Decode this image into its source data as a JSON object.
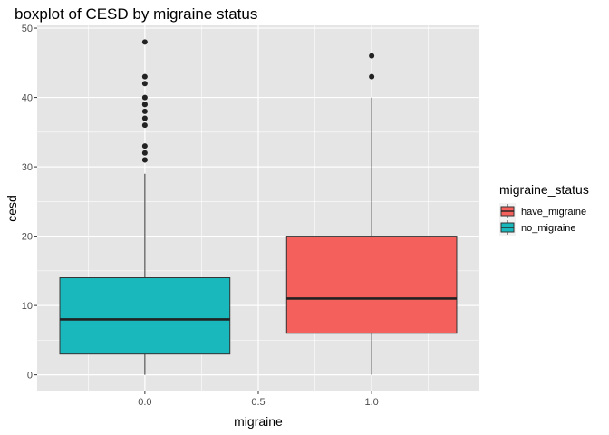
{
  "chart_data": {
    "type": "boxplot",
    "title": "boxplot of CESD by migraine status",
    "xlabel": "migraine",
    "ylabel": "cesd",
    "xlim": [
      -0.475,
      1.475
    ],
    "ylim": [
      -2.4,
      50.4
    ],
    "x_ticks": [
      0.0,
      0.5,
      1.0
    ],
    "x_tick_labels": [
      "0.0",
      "0.5",
      "1.0"
    ],
    "x_minor_ticks": [
      -0.25,
      0.25,
      0.75,
      1.25
    ],
    "y_ticks": [
      0,
      10,
      20,
      30,
      40,
      50
    ],
    "y_tick_labels": [
      "0",
      "10",
      "20",
      "30",
      "40",
      "50"
    ],
    "y_minor_ticks": [
      5,
      15,
      25,
      35,
      45
    ],
    "grid": true,
    "panel_background": "#e5e5e5",
    "grid_color": "#ffffff",
    "box_width": 0.75,
    "boxes": [
      {
        "group": "no_migraine",
        "x": 0.0,
        "whisker_low": 0,
        "q1": 3,
        "median": 8,
        "q3": 14,
        "whisker_high": 29,
        "outliers": [
          31,
          31,
          32,
          33,
          36,
          37,
          38,
          39,
          39,
          40,
          42,
          43,
          48
        ],
        "color": "#19b8bd"
      },
      {
        "group": "have_migraine",
        "x": 1.0,
        "whisker_low": 0,
        "q1": 6,
        "median": 11,
        "q3": 20,
        "whisker_high": 40,
        "outliers": [
          43,
          46
        ],
        "color": "#f4605c"
      }
    ],
    "legend": {
      "title": "migraine_status",
      "position": "right",
      "entries": [
        {
          "label": "have_migraine",
          "color": "#f4605c"
        },
        {
          "label": "no_migraine",
          "color": "#19b8bd"
        }
      ]
    }
  }
}
